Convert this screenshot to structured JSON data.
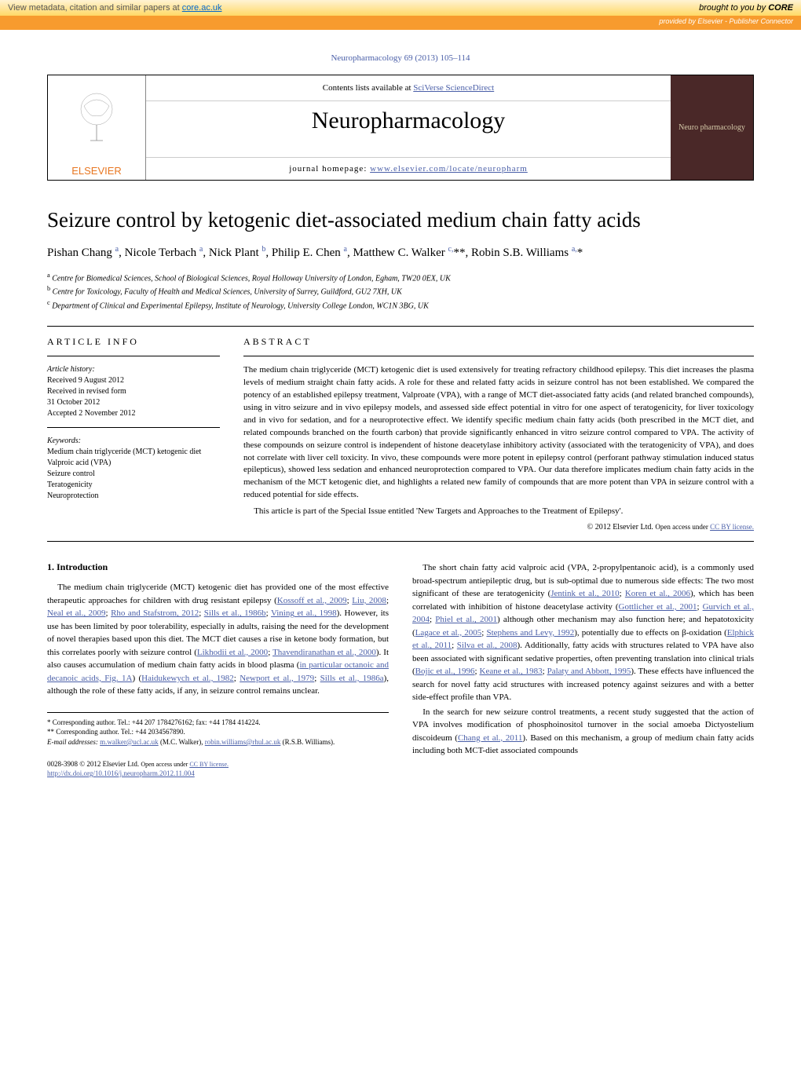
{
  "banner": {
    "left_text": "View metadata, citation and similar papers at ",
    "core_link": "core.ac.uk",
    "right_prefix": "brought to you by ",
    "core_brand": "CORE",
    "provided_by": "provided by Elsevier - Publisher Connector"
  },
  "journal_ref": "Neuropharmacology 69 (2013) 105–114",
  "header": {
    "contents_text": "Contents lists available at ",
    "contents_link": "SciVerse ScienceDirect",
    "journal_name": "Neuropharmacology",
    "homepage_text": "journal homepage: ",
    "homepage_link": "www.elsevier.com/locate/neuropharm",
    "elsevier": "ELSEVIER",
    "cover_text": "Neuro pharmacology"
  },
  "title": "Seizure control by ketogenic diet-associated medium chain fatty acids",
  "authors_html": "Pishan Chang <sup>a</sup>, Nicole Terbach <sup>a</sup>, Nick Plant <sup>b</sup>, Philip E. Chen <sup>a</sup>, Matthew C. Walker <sup>c,</sup>**, Robin S.B. Williams <sup>a,</sup>*",
  "affiliations": [
    "<sup>a</sup> Centre for Biomedical Sciences, School of Biological Sciences, Royal Holloway University of London, Egham, TW20 0EX, UK",
    "<sup>b</sup> Centre for Toxicology, Faculty of Health and Medical Sciences, University of Surrey, Guildford, GU2 7XH, UK",
    "<sup>c</sup> Department of Clinical and Experimental Epilepsy, Institute of Neurology, University College London, WC1N 3BG, UK"
  ],
  "article_info": {
    "header": "ARTICLE INFO",
    "history_label": "Article history:",
    "history": [
      "Received 9 August 2012",
      "Received in revised form",
      "31 October 2012",
      "Accepted 2 November 2012"
    ],
    "keywords_label": "Keywords:",
    "keywords": [
      "Medium chain triglyceride (MCT) ketogenic diet",
      "Valproic acid (VPA)",
      "Seizure control",
      "Teratogenicity",
      "Neuroprotection"
    ]
  },
  "abstract": {
    "header": "ABSTRACT",
    "para1": "The medium chain triglyceride (MCT) ketogenic diet is used extensively for treating refractory childhood epilepsy. This diet increases the plasma levels of medium straight chain fatty acids. A role for these and related fatty acids in seizure control has not been established. We compared the potency of an established epilepsy treatment, Valproate (VPA), with a range of MCT diet-associated fatty acids (and related branched compounds), using in vitro seizure and in vivo epilepsy models, and assessed side effect potential in vitro for one aspect of teratogenicity, for liver toxicology and in vivo for sedation, and for a neuroprotective effect. We identify specific medium chain fatty acids (both prescribed in the MCT diet, and related compounds branched on the fourth carbon) that provide significantly enhanced in vitro seizure control compared to VPA. The activity of these compounds on seizure control is independent of histone deacetylase inhibitory activity (associated with the teratogenicity of VPA), and does not correlate with liver cell toxicity. In vivo, these compounds were more potent in epilepsy control (perforant pathway stimulation induced status epilepticus), showed less sedation and enhanced neuroprotection compared to VPA. Our data therefore implicates medium chain fatty acids in the mechanism of the MCT ketogenic diet, and highlights a related new family of compounds that are more potent than VPA in seizure control with a reduced potential for side effects.",
    "para2": "This article is part of the Special Issue entitled 'New Targets and Approaches to the Treatment of Epilepsy'.",
    "copyright": "© 2012 Elsevier Ltd. ",
    "license_text": "Open access under ",
    "license_link": "CC BY license."
  },
  "intro": {
    "header": "1. Introduction",
    "col1_p1": "The medium chain triglyceride (MCT) ketogenic diet has provided one of the most effective therapeutic approaches for children with drug resistant epilepsy (Kossoff et al., 2009; Liu, 2008; Neal et al., 2009; Rho and Stafstrom, 2012; Sills et al., 1986b; Vining et al., 1998). However, its use has been limited by poor tolerability, especially in adults, raising the need for the development of novel therapies based upon this diet. The MCT diet causes a rise in ketone body formation, but this correlates poorly with seizure control (Likhodii et al., 2000; Thavendiranathan et al., 2000). It also causes accumulation of medium chain fatty acids in blood plasma (in particular octanoic and decanoic acids, Fig. 1A) (Haidukewych et al., 1982; Newport et al., 1979; Sills et al., 1986a), although the role of these fatty acids, if any, in seizure control remains unclear.",
    "col2_p1": "The short chain fatty acid valproic acid (VPA, 2-propylpentanoic acid), is a commonly used broad-spectrum antiepileptic drug, but is sub-optimal due to numerous side effects: The two most significant of these are teratogenicity (Jentink et al., 2010; Koren et al., 2006), which has been correlated with inhibition of histone deacetylase activity (Gottlicher et al., 2001; Gurvich et al., 2004; Phiel et al., 2001) although other mechanism may also function here; and hepatotoxicity (Lagace et al., 2005; Stephens and Levy, 1992), potentially due to effects on β-oxidation (Elphick et al., 2011; Silva et al., 2008). Additionally, fatty acids with structures related to VPA have also been associated with significant sedative properties, often preventing translation into clinical trials (Bojic et al., 1996; Keane et al., 1983; Palaty and Abbott, 1995). These effects have influenced the search for novel fatty acid structures with increased potency against seizures and with a better side-effect profile than VPA.",
    "col2_p2": "In the search for new seizure control treatments, a recent study suggested that the action of VPA involves modification of phosphoinositol turnover in the social amoeba Dictyostelium discoideum (Chang et al., 2011). Based on this mechanism, a group of medium chain fatty acids including both MCT-diet associated compounds"
  },
  "footnotes": {
    "f1": "* Corresponding author. Tel.: +44 207 1784276162; fax: +44 1784 414224.",
    "f2": "** Corresponding author. Tel.: +44 2034567890.",
    "emails_label": "E-mail addresses: ",
    "email1": "m.walker@ucl.ac.uk",
    "email1_who": " (M.C. Walker), ",
    "email2": "robin.williams@rhul.ac.uk",
    "email2_who": " (R.S.B. Williams)."
  },
  "bottom": {
    "issn": "0028-3908 © 2012 Elsevier Ltd. ",
    "license_text": "Open access under ",
    "license_link": "CC BY license.",
    "doi": "http://dx.doi.org/10.1016/j.neuropharm.2012.11.004"
  },
  "colors": {
    "link": "#4a5fa8",
    "orange": "#e87722",
    "banner_bg": "#ffd966"
  }
}
